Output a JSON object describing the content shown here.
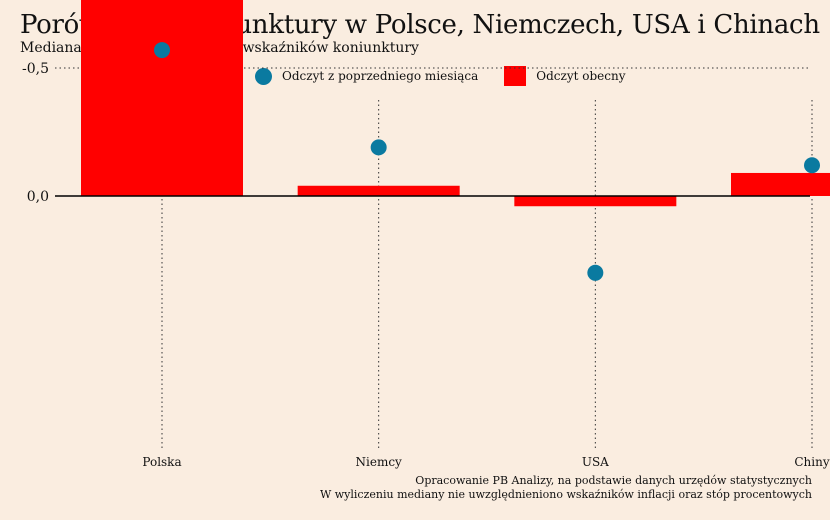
{
  "colors": {
    "background": "#faede0",
    "current": "#ff0000",
    "previous": "#0a7aa0"
  },
  "chart_data": {
    "type": "bar",
    "title": "Porównanie koniunktury w Polsce, Niemczech, USA i Chinach",
    "subtitle": "Mediana wystandaryzowanych wskaźników koniunktury",
    "categories": [
      "Polska",
      "Niemcy",
      "USA",
      "Chiny"
    ],
    "series": [
      {
        "name": "Odczyt obecny",
        "kind": "bar",
        "values": [
          -0.93,
          -0.04,
          0.04,
          -0.09
        ]
      },
      {
        "name": "Odczyt z poprzedniego miesiąca",
        "kind": "point",
        "values": [
          -0.57,
          -0.19,
          0.3,
          -0.12
        ]
      }
    ],
    "ylim": [
      -0.95,
      0.37
    ],
    "yticks": [
      0.0,
      -0.5
    ],
    "ytick_labels": [
      "0,0",
      "-0,5"
    ],
    "legend_position": "top",
    "grid": "dotted",
    "caption": [
      "Opracowanie PB Analizy, na podstawie danych urzędów statystycznych",
      "W wyliczeniu mediany nie uwzględnieniono wskaźników inflacji oraz stóp procentowych"
    ]
  }
}
